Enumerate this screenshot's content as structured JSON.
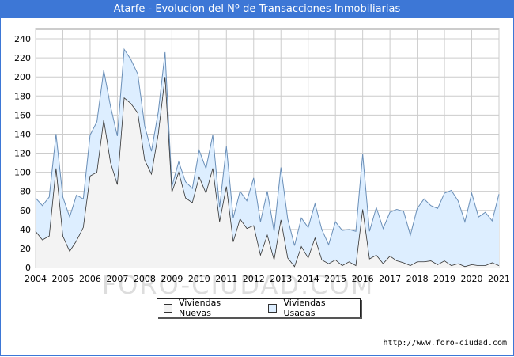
{
  "chart_data": {
    "type": "area",
    "title": "Atarfe - Evolucion del Nº de Transacciones Inmobiliarias",
    "xlabel": "",
    "ylabel": "",
    "ylim": [
      0,
      250
    ],
    "yticks": [
      0,
      20,
      40,
      60,
      80,
      100,
      120,
      140,
      160,
      180,
      200,
      220,
      240
    ],
    "xticks": [
      "2004",
      "2005",
      "2006",
      "2007",
      "2008",
      "2009",
      "2010",
      "2011",
      "2012",
      "2013",
      "2014",
      "2015",
      "2016",
      "2017",
      "2018",
      "2019",
      "2020",
      "2021"
    ],
    "x_start": 2004,
    "x_end": 2021,
    "quarters_per_year": 4,
    "series": [
      {
        "name": "Viviendas Nuevas",
        "color": "#f3f3f3",
        "values": [
          38,
          29,
          33,
          104,
          33,
          17,
          28,
          42,
          96,
          100,
          155,
          110,
          87,
          178,
          172,
          162,
          113,
          98,
          140,
          200,
          79,
          100,
          73,
          68,
          95,
          78,
          104,
          48,
          85,
          27,
          51,
          41,
          44,
          13,
          34,
          8,
          50,
          10,
          1,
          22,
          10,
          31,
          8,
          4,
          8,
          2,
          6,
          2,
          61,
          9,
          13,
          4,
          12,
          7,
          5,
          2,
          6,
          6,
          7,
          3,
          7,
          2,
          4,
          1,
          3,
          2,
          2,
          5,
          2
        ]
      },
      {
        "name": "Viviendas Usadas",
        "color": "#ddeeff",
        "values": [
          73,
          65,
          74,
          140,
          74,
          53,
          76,
          72,
          139,
          153,
          207,
          169,
          138,
          229,
          218,
          203,
          149,
          122,
          163,
          226,
          85,
          111,
          90,
          83,
          123,
          104,
          139,
          63,
          127,
          52,
          80,
          70,
          94,
          48,
          80,
          38,
          105,
          51,
          23,
          52,
          42,
          67,
          40,
          24,
          48,
          39,
          40,
          38,
          119,
          38,
          63,
          41,
          58,
          61,
          59,
          34,
          62,
          72,
          65,
          62,
          78,
          81,
          70,
          48,
          78,
          53,
          58,
          49,
          77
        ]
      }
    ],
    "legend": {
      "position": "bottom-center",
      "entries": [
        "Viviendas Nuevas",
        "Viviendas Usadas"
      ]
    }
  },
  "footer": {
    "credit": "http://www.foro-ciudad.com",
    "watermark": "FORO-CIUDAD.COM"
  },
  "colors": {
    "title_bar": "#3d77d6",
    "grid": "#cccccc",
    "line": "#6a8fb8",
    "line_new": "#333333"
  }
}
